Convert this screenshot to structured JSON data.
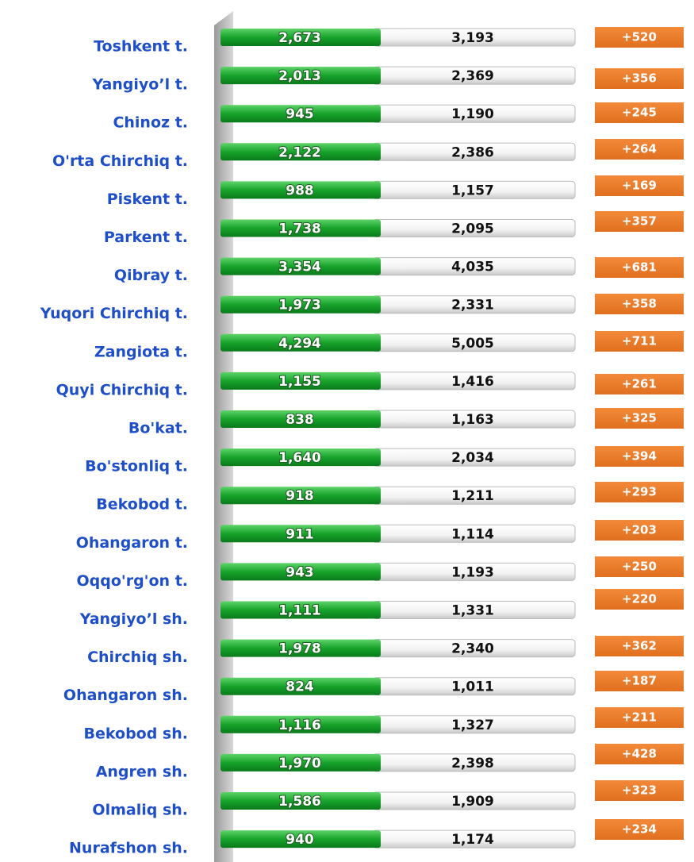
{
  "rows": [
    {
      "label": "Toshkent t.",
      "before": "2,673",
      "after": "3,193",
      "change": "+520"
    },
    {
      "label": "Yangiyo’l t.",
      "before": "2,013",
      "after": "2,369",
      "change": "+356"
    },
    {
      "label": "Chinoz t.",
      "before": "945",
      "after": "1,190",
      "change": "+245"
    },
    {
      "label": "O'rta Chirchiq t.",
      "before": "2,122",
      "after": "2,386",
      "change": "+264"
    },
    {
      "label": "Piskent  t.",
      "before": "988",
      "after": "1,157",
      "change": "+169"
    },
    {
      "label": "Parkent t.",
      "before": "1,738",
      "after": "2,095",
      "change": "+357"
    },
    {
      "label": "Qibray t.",
      "before": "3,354",
      "after": "4,035",
      "change": "+681"
    },
    {
      "label": "Yuqori Chirchiq t.",
      "before": "1,973",
      "after": "2,331",
      "change": "+358"
    },
    {
      "label": "Zangiota t.",
      "before": "4,294",
      "after": "5,005",
      "change": "+711"
    },
    {
      "label": "Quyi Chirchiq t.",
      "before": "1,155",
      "after": "1,416",
      "change": "+261"
    },
    {
      "label": "Bo'kat.",
      "before": "838",
      "after": "1,163",
      "change": "+325"
    },
    {
      "label": "Bo'stonliq  t.",
      "before": "1,640",
      "after": "2,034",
      "change": "+394"
    },
    {
      "label": "Bekobod  t.",
      "before": "918",
      "after": "1,211",
      "change": "+293"
    },
    {
      "label": "Ohangaron t.",
      "before": "911",
      "after": "1,114",
      "change": "+203"
    },
    {
      "label": "Oqqo'rg'on t.",
      "before": "943",
      "after": "1,193",
      "change": "+250"
    },
    {
      "label": "Yangiyo’l sh.",
      "before": "1,111",
      "after": "1,331",
      "change": "+220"
    },
    {
      "label": "Chirchiq  sh.",
      "before": "1,978",
      "after": "2,340",
      "change": "+362"
    },
    {
      "label": "Ohangaron  sh.",
      "before": "824",
      "after": "1,011",
      "change": "+187"
    },
    {
      "label": "Bekobod  sh.",
      "before": "1,116",
      "after": "1,327",
      "change": "+211"
    },
    {
      "label": "Angren  sh.",
      "before": "1,970",
      "after": "2,398",
      "change": "+428"
    },
    {
      "label": "Olmaliq sh.",
      "before": "1,586",
      "after": "1,909",
      "change": "+323"
    },
    {
      "label": "Nurafshon sh.",
      "before": "940",
      "after": "1,174",
      "change": "+234"
    }
  ]
}
